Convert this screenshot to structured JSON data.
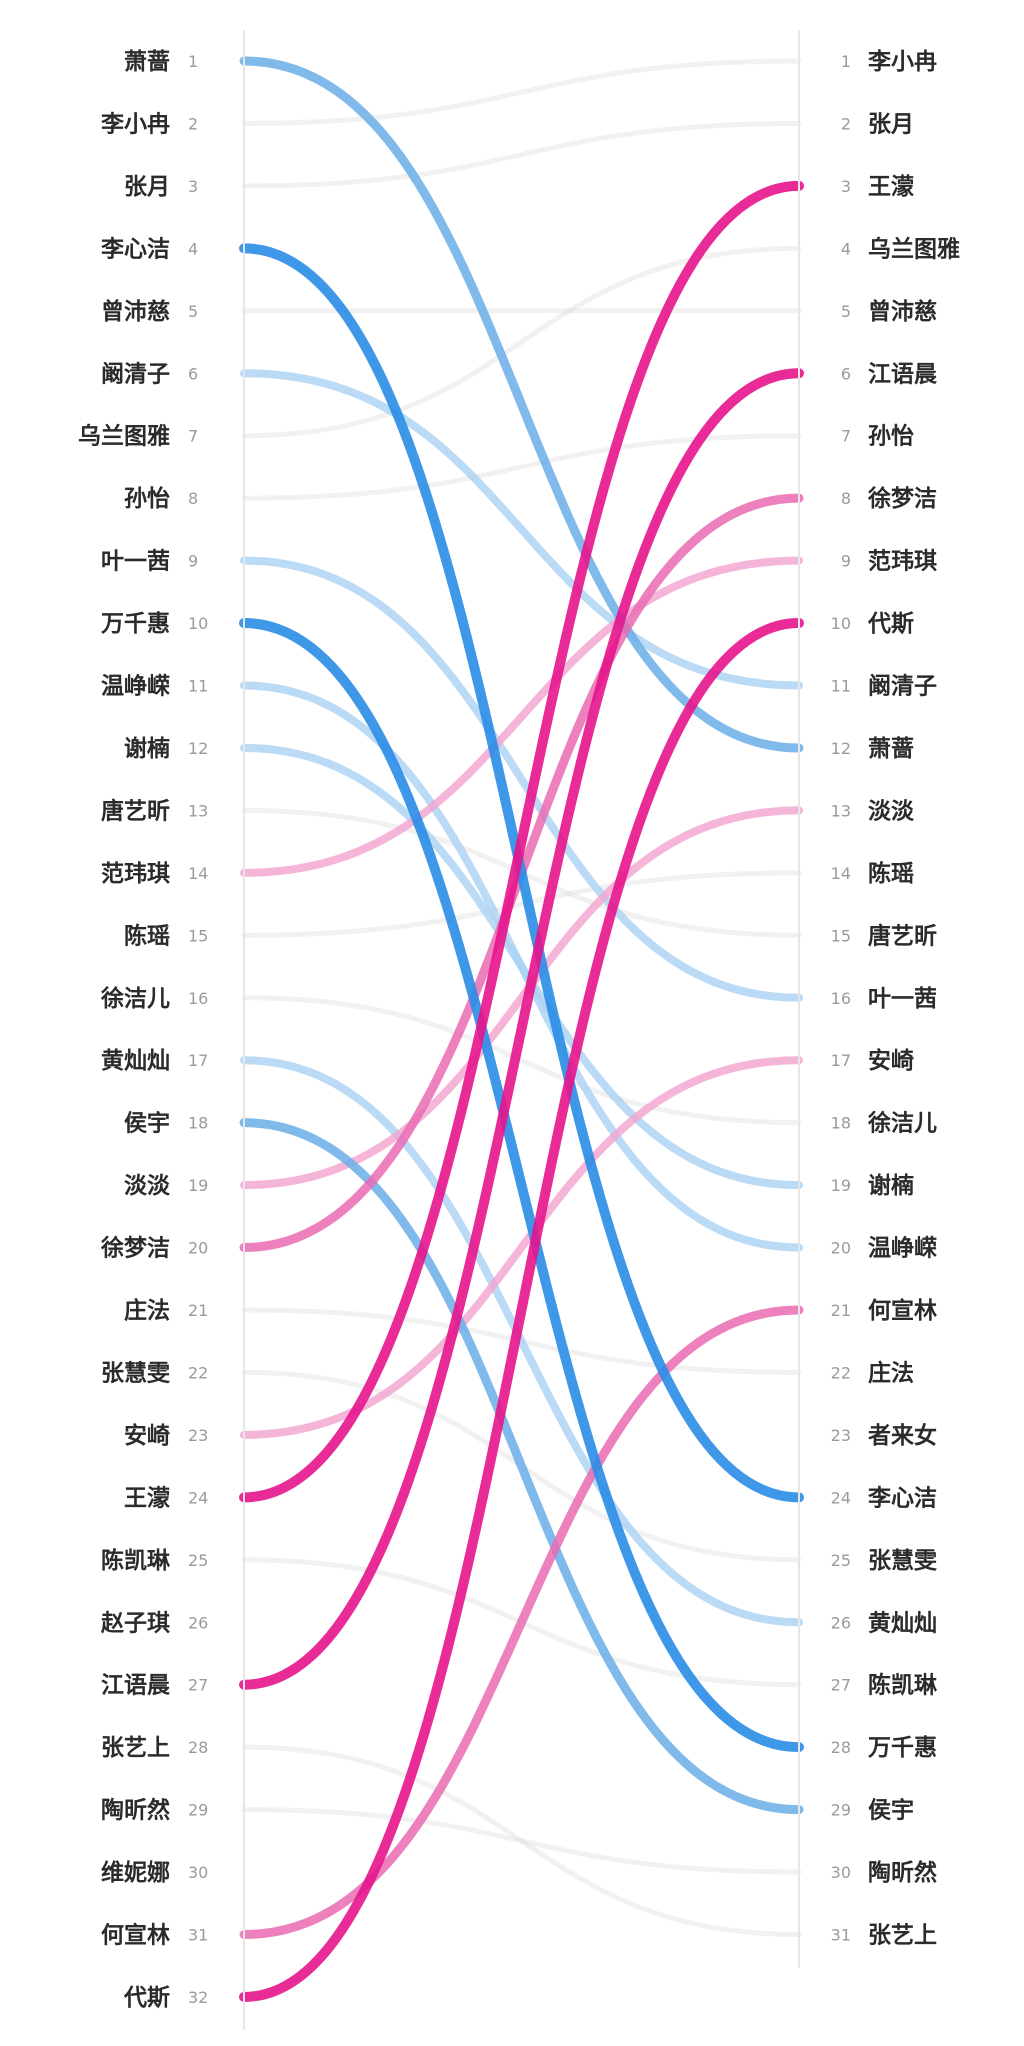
{
  "chart_data": {
    "type": "slope-bump",
    "left": {
      "names": [
        "萧蔷",
        "李小冉",
        "张月",
        "李心洁",
        "曾沛慈",
        "阚清子",
        "乌兰图雅",
        "孙怡",
        "叶一茜",
        "万千惠",
        "温峥嵘",
        "谢楠",
        "唐艺昕",
        "范玮琪",
        "陈瑶",
        "徐洁儿",
        "黄灿灿",
        "侯宇",
        "淡淡",
        "徐梦洁",
        "庄法",
        "张慧雯",
        "安崎",
        "王濛",
        "陈凯琳",
        "赵子琪",
        "江语晨",
        "张艺上",
        "陶昕然",
        "维妮娜",
        "何宣林",
        "代斯"
      ],
      "ranks": [
        "1",
        "2",
        "3",
        "4",
        "5",
        "6",
        "7",
        "8",
        "9",
        "10",
        "11",
        "12",
        "13",
        "14",
        "15",
        "16",
        "17",
        "18",
        "19",
        "20",
        "21",
        "22",
        "23",
        "24",
        "25",
        "26",
        "27",
        "28",
        "29",
        "30",
        "31",
        "32"
      ]
    },
    "right": {
      "names": [
        "李小冉",
        "张月",
        "王濛",
        "乌兰图雅",
        "曾沛慈",
        "江语晨",
        "孙怡",
        "徐梦洁",
        "范玮琪",
        "代斯",
        "阚清子",
        "萧蔷",
        "淡淡",
        "陈瑶",
        "唐艺昕",
        "叶一茜",
        "安崎",
        "徐洁儿",
        "谢楠",
        "温峥嵘",
        "何宣林",
        "庄法",
        "者来女",
        "李心洁",
        "张慧雯",
        "黄灿灿",
        "陈凯琳",
        "万千惠",
        "侯宇",
        "陶昕然",
        "张艺上"
      ],
      "ranks": [
        "1",
        "2",
        "3",
        "4",
        "5",
        "6",
        "7",
        "8",
        "9",
        "10",
        "11",
        "12",
        "13",
        "14",
        "15",
        "16",
        "17",
        "18",
        "19",
        "20",
        "21",
        "22",
        "23",
        "24",
        "25",
        "26",
        "27",
        "28",
        "29",
        "30",
        "31"
      ]
    },
    "links": [
      {
        "from": 1,
        "to": 12,
        "color": "#6aaee6",
        "opacity": 0.85,
        "width": 9
      },
      {
        "from": 2,
        "to": 1,
        "color": "#d8d8d8",
        "opacity": 0.35,
        "width": 5
      },
      {
        "from": 3,
        "to": 2,
        "color": "#d8d8d8",
        "opacity": 0.35,
        "width": 5
      },
      {
        "from": 4,
        "to": 24,
        "color": "#2a8ce6",
        "opacity": 0.9,
        "width": 10
      },
      {
        "from": 5,
        "to": 5,
        "color": "#d8d8d8",
        "opacity": 0.35,
        "width": 5
      },
      {
        "from": 6,
        "to": 11,
        "color": "#a9d1f3",
        "opacity": 0.8,
        "width": 8
      },
      {
        "from": 7,
        "to": 4,
        "color": "#d8d8d8",
        "opacity": 0.35,
        "width": 5
      },
      {
        "from": 8,
        "to": 7,
        "color": "#d8d8d8",
        "opacity": 0.35,
        "width": 5
      },
      {
        "from": 9,
        "to": 16,
        "color": "#a9d1f3",
        "opacity": 0.8,
        "width": 8
      },
      {
        "from": 10,
        "to": 28,
        "color": "#2a8ce6",
        "opacity": 0.9,
        "width": 10
      },
      {
        "from": 11,
        "to": 20,
        "color": "#a9d1f3",
        "opacity": 0.8,
        "width": 8
      },
      {
        "from": 12,
        "to": 19,
        "color": "#a9d1f3",
        "opacity": 0.8,
        "width": 8
      },
      {
        "from": 13,
        "to": 15,
        "color": "#d8d8d8",
        "opacity": 0.35,
        "width": 5
      },
      {
        "from": 14,
        "to": 9,
        "color": "#f3a2cf",
        "opacity": 0.8,
        "width": 8
      },
      {
        "from": 15,
        "to": 14,
        "color": "#d8d8d8",
        "opacity": 0.35,
        "width": 5
      },
      {
        "from": 16,
        "to": 18,
        "color": "#d8d8d8",
        "opacity": 0.35,
        "width": 5
      },
      {
        "from": 17,
        "to": 26,
        "color": "#a9d1f3",
        "opacity": 0.8,
        "width": 8
      },
      {
        "from": 18,
        "to": 29,
        "color": "#6aaee6",
        "opacity": 0.85,
        "width": 9
      },
      {
        "from": 19,
        "to": 13,
        "color": "#f3a2cf",
        "opacity": 0.8,
        "width": 8
      },
      {
        "from": 20,
        "to": 8,
        "color": "#e96bb3",
        "opacity": 0.85,
        "width": 9
      },
      {
        "from": 21,
        "to": 22,
        "color": "#d8d8d8",
        "opacity": 0.35,
        "width": 5
      },
      {
        "from": 22,
        "to": 25,
        "color": "#d8d8d8",
        "opacity": 0.35,
        "width": 5
      },
      {
        "from": 23,
        "to": 17,
        "color": "#f3a2cf",
        "opacity": 0.8,
        "width": 8
      },
      {
        "from": 24,
        "to": 3,
        "color": "#e6148c",
        "opacity": 0.9,
        "width": 10
      },
      {
        "from": 25,
        "to": 27,
        "color": "#d8d8d8",
        "opacity": 0.35,
        "width": 5
      },
      {
        "from": 27,
        "to": 6,
        "color": "#e6148c",
        "opacity": 0.9,
        "width": 10
      },
      {
        "from": 28,
        "to": 31,
        "color": "#d8d8d8",
        "opacity": 0.35,
        "width": 5
      },
      {
        "from": 29,
        "to": 30,
        "color": "#d8d8d8",
        "opacity": 0.35,
        "width": 5
      },
      {
        "from": 31,
        "to": 21,
        "color": "#e96bb3",
        "opacity": 0.85,
        "width": 9
      },
      {
        "from": 32,
        "to": 10,
        "color": "#e6148c",
        "opacity": 0.9,
        "width": 10
      }
    ]
  }
}
